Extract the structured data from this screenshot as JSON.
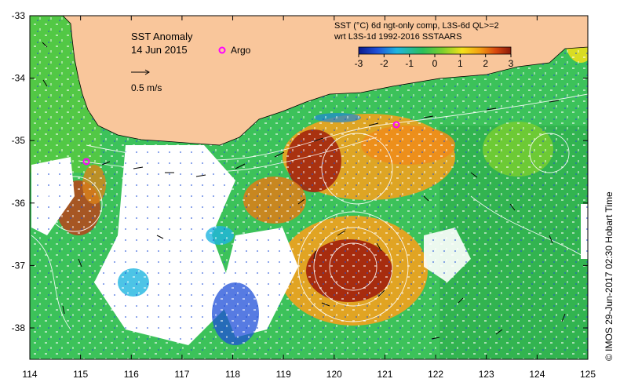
{
  "title": "SST Anomaly",
  "date": "14 Jun 2015",
  "argo_label": "Argo",
  "scale_label": "0.5 m/s",
  "colorbar": {
    "title_line1": "SST (°C) 6d ngt-only comp, L3S-6d QL>=2",
    "title_line2": "wrt L3S-1d 1992-2016 SSTAARS",
    "ticks": [
      "-3",
      "-2",
      "-1",
      "0",
      "1",
      "2",
      "3"
    ],
    "colors": [
      "#0b1a8c",
      "#1f4fd8",
      "#1fb5e0",
      "#2bbf5a",
      "#7ccf2e",
      "#f4e11a",
      "#f39c12",
      "#d9480f",
      "#8b1a0a"
    ]
  },
  "credit": "© IMOS 29-Jun-2017 02:30 Hobart Time",
  "axes": {
    "x_ticks": [
      "114",
      "115",
      "116",
      "117",
      "118",
      "119",
      "120",
      "121",
      "122",
      "123",
      "124",
      "125"
    ],
    "y_ticks": [
      "-33",
      "-34",
      "-35",
      "-36",
      "-37",
      "-38"
    ]
  },
  "colors": {
    "land": "#f9c69b",
    "ocean_green": "#3cc25a",
    "warm": "#f0a21e",
    "hot": "#a3260e",
    "cool": "#1e88d6",
    "argo": "#ff00ff"
  }
}
